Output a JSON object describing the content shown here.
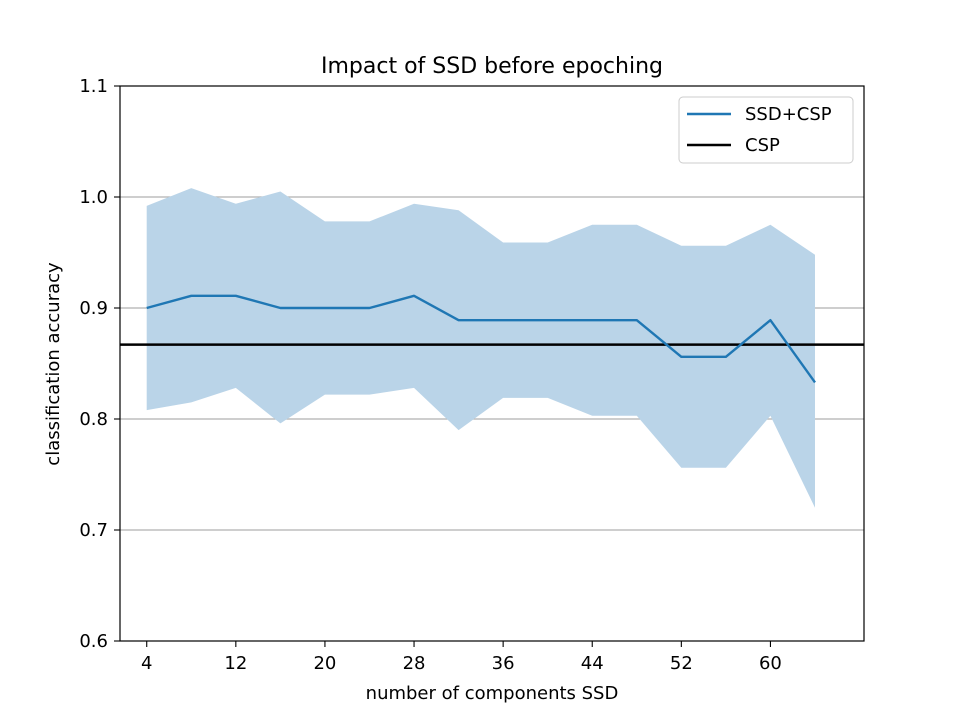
{
  "chart_data": {
    "type": "line",
    "title": "Impact of SSD before epoching",
    "xlabel": "number of components SSD",
    "ylabel": "classification accuracy",
    "xlim": [
      1.6,
      68.4
    ],
    "ylim": [
      0.6,
      1.1
    ],
    "xticks": [
      4,
      12,
      20,
      28,
      36,
      44,
      52,
      60
    ],
    "yticks": [
      0.6,
      0.7,
      0.8,
      0.9,
      1.0,
      1.1
    ],
    "ytick_labels": [
      "0.6",
      "0.7",
      "0.8",
      "0.9",
      "1.0",
      "1.1"
    ],
    "grid": "horizontal",
    "legend_position": "top-right",
    "x": [
      4,
      8,
      12,
      16,
      20,
      24,
      28,
      32,
      36,
      40,
      44,
      48,
      52,
      56,
      60,
      64
    ],
    "series": [
      {
        "name": "SSD+CSP",
        "color": "#1f77b4",
        "values": [
          0.9,
          0.911,
          0.911,
          0.9,
          0.9,
          0.9,
          0.911,
          0.889,
          0.889,
          0.889,
          0.889,
          0.889,
          0.856,
          0.856,
          0.889,
          0.833
        ],
        "upper": [
          0.992,
          1.008,
          0.994,
          1.005,
          0.978,
          0.978,
          0.994,
          0.988,
          0.959,
          0.959,
          0.975,
          0.975,
          0.956,
          0.956,
          0.975,
          0.948
        ],
        "lower": [
          0.808,
          0.815,
          0.828,
          0.796,
          0.822,
          0.822,
          0.828,
          0.79,
          0.819,
          0.819,
          0.803,
          0.803,
          0.756,
          0.756,
          0.803,
          0.72
        ],
        "band_color": "#bad4e8"
      },
      {
        "name": "CSP",
        "color": "#000000",
        "type": "hline",
        "value": 0.867
      }
    ]
  }
}
